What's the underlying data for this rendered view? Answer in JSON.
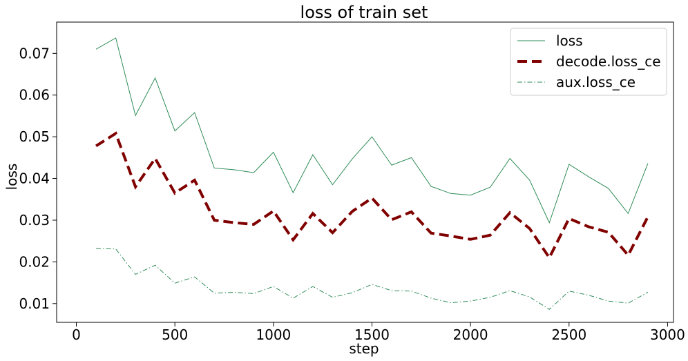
{
  "chart_data": {
    "type": "line",
    "title": "loss of train set",
    "xlabel": "step",
    "ylabel": "loss",
    "xlim": [
      -100,
      3030
    ],
    "ylim": [
      0.0055,
      0.0775
    ],
    "xticks": [
      0,
      500,
      1000,
      1500,
      2000,
      2500,
      3000
    ],
    "yticks": [
      0.01,
      0.02,
      0.03,
      0.04,
      0.05,
      0.06,
      0.07
    ],
    "grid": false,
    "legend_position": "top-right",
    "x": [
      100,
      200,
      300,
      400,
      500,
      600,
      700,
      800,
      900,
      1000,
      1100,
      1200,
      1300,
      1400,
      1500,
      1600,
      1700,
      1800,
      1900,
      2000,
      2100,
      2200,
      2300,
      2400,
      2500,
      2600,
      2700,
      2800,
      2900
    ],
    "series": [
      {
        "name": "loss",
        "color": "#2e8b57",
        "style": "solid",
        "values": [
          0.071,
          0.0737,
          0.0551,
          0.0641,
          0.0514,
          0.0558,
          0.0425,
          0.0421,
          0.0414,
          0.0463,
          0.0366,
          0.0457,
          0.0385,
          0.0447,
          0.05,
          0.0432,
          0.045,
          0.0381,
          0.0364,
          0.036,
          0.0379,
          0.0448,
          0.0396,
          0.0294,
          0.0434,
          0.0404,
          0.0376,
          0.0316,
          0.0436
        ]
      },
      {
        "name": "decode.loss_ce",
        "color": "#800000",
        "style": "dashed",
        "values": [
          0.0478,
          0.0508,
          0.038,
          0.0448,
          0.0365,
          0.0396,
          0.03,
          0.0294,
          0.029,
          0.0322,
          0.0253,
          0.0316,
          0.027,
          0.0321,
          0.0353,
          0.0301,
          0.032,
          0.0269,
          0.0262,
          0.0254,
          0.0264,
          0.0318,
          0.028,
          0.021,
          0.0304,
          0.0284,
          0.0271,
          0.0216,
          0.0308
        ]
      },
      {
        "name": "aux.loss_ce",
        "color": "#2e8b57",
        "style": "dashdot",
        "values": [
          0.0232,
          0.0231,
          0.017,
          0.0192,
          0.0149,
          0.0164,
          0.0125,
          0.0127,
          0.0124,
          0.0141,
          0.0113,
          0.0141,
          0.0115,
          0.0126,
          0.0146,
          0.0131,
          0.013,
          0.0113,
          0.0102,
          0.0106,
          0.0115,
          0.0131,
          0.0116,
          0.0086,
          0.013,
          0.012,
          0.0106,
          0.0101,
          0.0127
        ]
      }
    ]
  }
}
